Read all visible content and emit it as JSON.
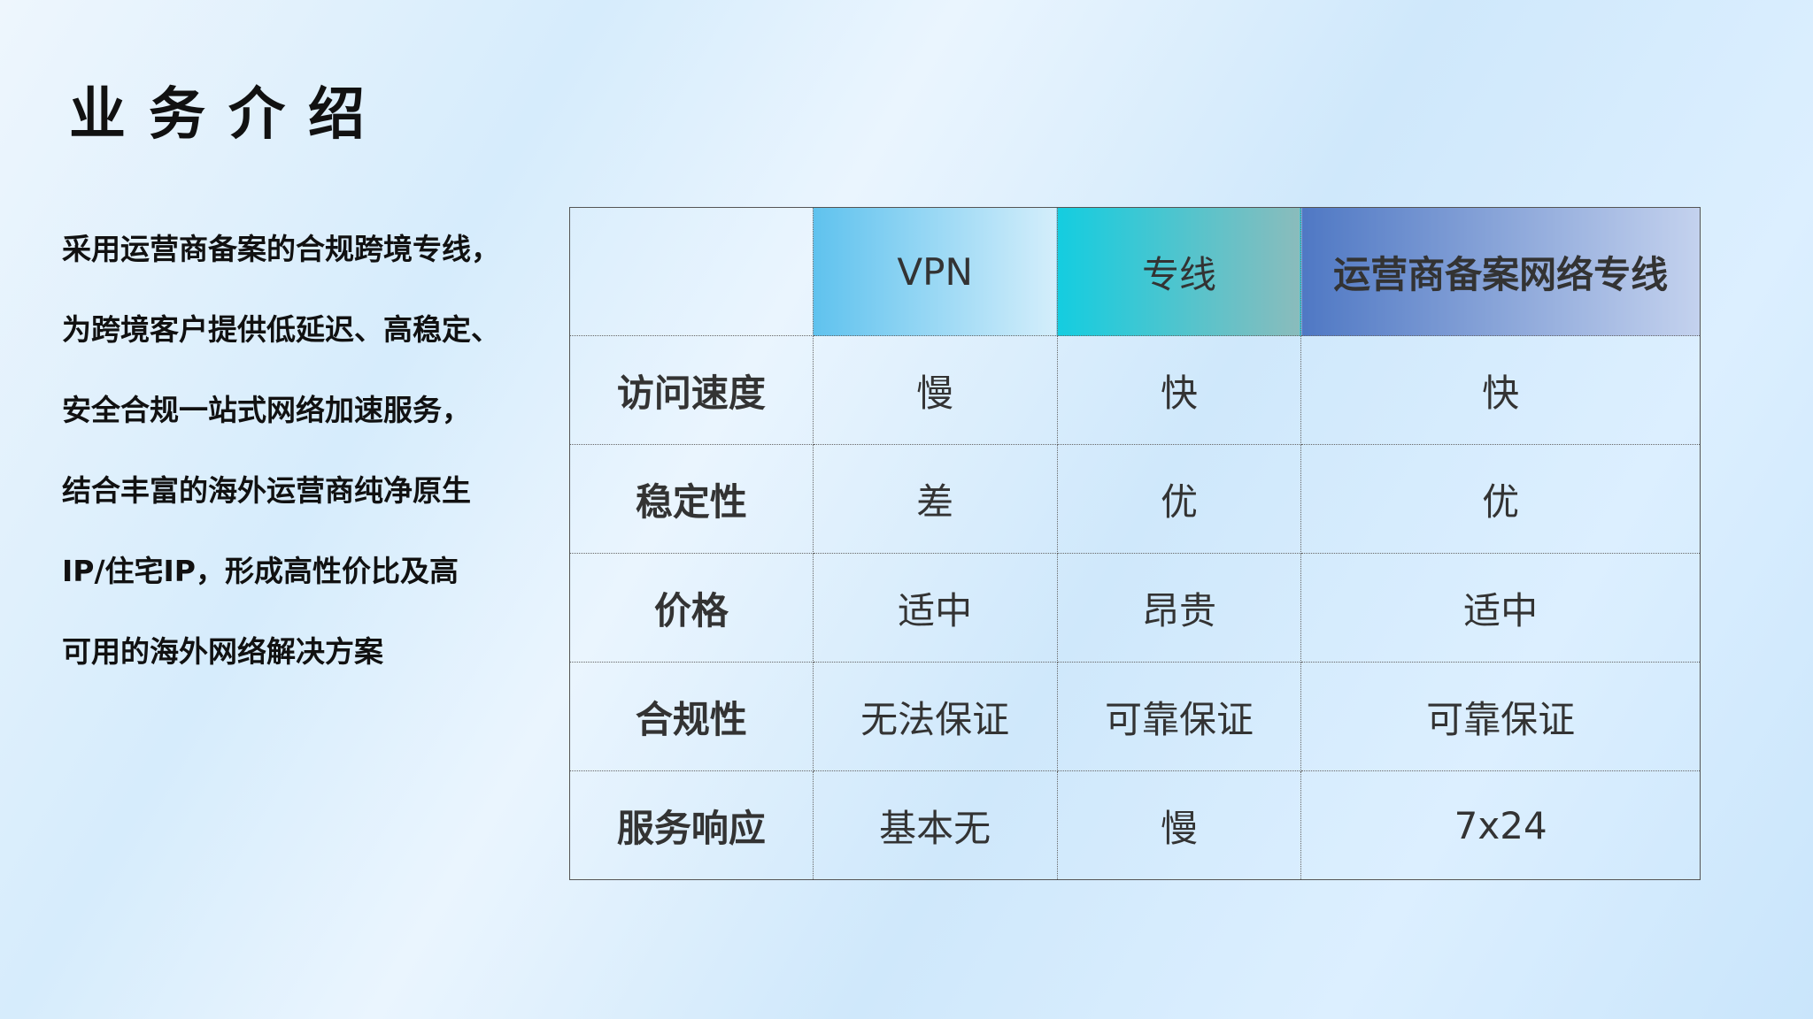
{
  "title": "业务介绍",
  "intro_lines": [
    "采用运营商备案的合规跨境专线，",
    "为跨境客户提供低延迟、高稳定、",
    "安全合规一站式网络加速服务，",
    "结合丰富的海外运营商纯净原生",
    "IP/住宅IP，形成高性价比及高",
    "可用的海外网络解决方案"
  ],
  "table": {
    "headers": [
      "",
      "VPN",
      "专线",
      "运营商备案网络专线"
    ],
    "header_colors": [
      "",
      "#5fc2ee",
      "#14cde0",
      "#4f78c4"
    ],
    "rows": [
      {
        "label": "访问速度",
        "cells": [
          "慢",
          "快",
          "快"
        ]
      },
      {
        "label": "稳定性",
        "cells": [
          "差",
          "优",
          "优"
        ]
      },
      {
        "label": "价格",
        "cells": [
          "适中",
          "昂贵",
          "适中"
        ]
      },
      {
        "label": "合规性",
        "cells": [
          "无法保证",
          "可靠保证",
          "可靠保证"
        ]
      },
      {
        "label": "服务响应",
        "cells": [
          "基本无",
          "慢",
          "7x24"
        ]
      }
    ]
  }
}
